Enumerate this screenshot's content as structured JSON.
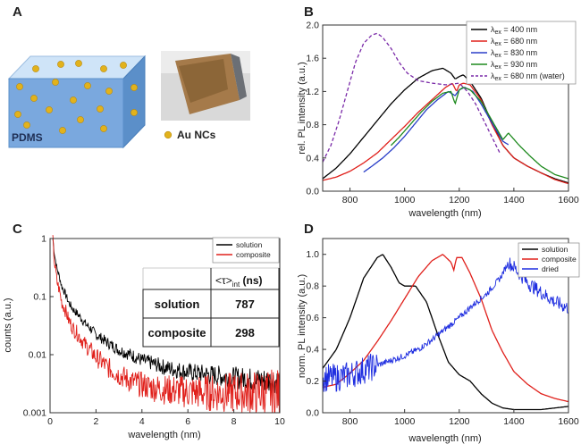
{
  "panel_letters": [
    "A",
    "B",
    "C",
    "D"
  ],
  "panel_a": {
    "block_label": "PDMS",
    "legend_label": "Au NCs",
    "colors": {
      "block_front": "#7aa8de",
      "block_top": "#cfe4f8",
      "block_side": "#5b8fc9",
      "dot": "#e2b21c"
    }
  },
  "chart_data": [
    {
      "type": "line",
      "panel": "B",
      "xlabel": "wavelength (nm)",
      "ylabel": "rel. PL intensity (a.u.)",
      "xlim": [
        700,
        1600
      ],
      "ylim": [
        0,
        2.0
      ],
      "xticks": [
        "800",
        "1000",
        "1200",
        "1400",
        "1600"
      ],
      "yticks": [
        "0.0",
        "0.4",
        "0.8",
        "1.2",
        "1.6",
        "2.0"
      ],
      "legend_position": "top-right",
      "series": [
        {
          "legend_main": "λ",
          "legend_sub": "ex",
          "legend_rest": " = 400 nm",
          "color": "#000000",
          "dash": false,
          "x": [
            700,
            750,
            800,
            850,
            900,
            950,
            1000,
            1050,
            1100,
            1140,
            1170,
            1185,
            1200,
            1215,
            1240,
            1280,
            1320,
            1360,
            1400,
            1450,
            1500,
            1550,
            1600
          ],
          "y": [
            0.15,
            0.28,
            0.45,
            0.65,
            0.85,
            1.05,
            1.22,
            1.36,
            1.45,
            1.48,
            1.42,
            1.35,
            1.38,
            1.4,
            1.32,
            1.12,
            0.82,
            0.55,
            0.4,
            0.3,
            0.22,
            0.15,
            0.1
          ]
        },
        {
          "legend_main": "λ",
          "legend_sub": "ex",
          "legend_rest": " = 680 nm",
          "color": "#e0201b",
          "dash": false,
          "x": [
            700,
            750,
            800,
            850,
            900,
            950,
            1000,
            1050,
            1100,
            1150,
            1175,
            1190,
            1200,
            1215,
            1240,
            1280,
            1320,
            1360,
            1400,
            1450,
            1500,
            1550,
            1600
          ],
          "y": [
            0.13,
            0.17,
            0.24,
            0.34,
            0.46,
            0.62,
            0.78,
            0.95,
            1.1,
            1.25,
            1.3,
            1.2,
            1.28,
            1.3,
            1.28,
            1.1,
            0.8,
            0.55,
            0.4,
            0.3,
            0.22,
            0.14,
            0.09
          ]
        },
        {
          "legend_main": "λ",
          "legend_sub": "ex",
          "legend_rest": " = 830 nm",
          "color": "#2b3fc8",
          "dash": false,
          "x": [
            850,
            880,
            920,
            960,
            1000,
            1040,
            1080,
            1120,
            1160,
            1185,
            1200,
            1220,
            1250,
            1280,
            1320,
            1360,
            1380
          ],
          "y": [
            0.23,
            0.3,
            0.4,
            0.52,
            0.66,
            0.82,
            0.98,
            1.1,
            1.2,
            1.15,
            1.22,
            1.25,
            1.2,
            1.05,
            0.82,
            0.6,
            0.56
          ]
        },
        {
          "legend_main": "λ",
          "legend_sub": "ex",
          "legend_rest": " = 930 nm",
          "color": "#1e8a1e",
          "dash": false,
          "x": [
            950,
            980,
            1020,
            1060,
            1100,
            1140,
            1170,
            1185,
            1200,
            1215,
            1240,
            1280,
            1320,
            1360,
            1380,
            1420,
            1460,
            1500,
            1550,
            1600
          ],
          "y": [
            0.55,
            0.65,
            0.8,
            0.95,
            1.08,
            1.18,
            1.2,
            1.05,
            1.22,
            1.25,
            1.22,
            1.08,
            0.85,
            0.62,
            0.7,
            0.55,
            0.42,
            0.3,
            0.2,
            0.15
          ]
        },
        {
          "legend_main": "λ",
          "legend_sub": "ex",
          "legend_rest": " = 680 nm (water)",
          "color": "#7a2aa8",
          "dash": true,
          "x": [
            700,
            730,
            760,
            790,
            820,
            850,
            880,
            900,
            920,
            950,
            980,
            1010,
            1050,
            1100,
            1150,
            1200,
            1230,
            1260,
            1290,
            1320,
            1350
          ],
          "y": [
            0.35,
            0.55,
            0.85,
            1.2,
            1.55,
            1.78,
            1.88,
            1.9,
            1.85,
            1.72,
            1.55,
            1.42,
            1.33,
            1.3,
            1.28,
            1.3,
            1.2,
            1.05,
            0.85,
            0.65,
            0.45
          ]
        }
      ]
    },
    {
      "type": "line",
      "panel": "C",
      "xlabel": "wavelength (nm)",
      "ylabel": "counts (a.u.)",
      "xlim": [
        0,
        10
      ],
      "ylim": [
        0.001,
        1
      ],
      "yscale": "log",
      "xticks": [
        "0",
        "2",
        "4",
        "6",
        "8",
        "10"
      ],
      "yticks": [
        "0.001",
        "0.01",
        "0.1",
        "1"
      ],
      "legend_position": "top-right",
      "series": [
        {
          "name": "solution",
          "color": "#000000",
          "noise": true,
          "x": [
            0.12,
            0.15,
            0.2,
            0.3,
            0.5,
            0.8,
            1.0,
            1.5,
            2.0,
            2.5,
            3.0,
            4.0,
            5.0,
            6.0,
            7.0,
            8.0,
            9.0,
            10.0
          ],
          "y": [
            1.0,
            0.75,
            0.5,
            0.3,
            0.15,
            0.08,
            0.06,
            0.035,
            0.022,
            0.016,
            0.012,
            0.008,
            0.006,
            0.005,
            0.0045,
            0.004,
            0.0037,
            0.0035
          ]
        },
        {
          "name": "composite",
          "color": "#e0201b",
          "noise": true,
          "x": [
            0.12,
            0.15,
            0.2,
            0.3,
            0.5,
            0.8,
            1.0,
            1.5,
            2.0,
            2.5,
            3.0,
            3.5,
            4.0,
            4.5,
            5.0,
            5.5,
            6.0,
            7.0,
            8.0,
            9.0,
            10.0
          ],
          "y": [
            1.0,
            0.6,
            0.35,
            0.18,
            0.08,
            0.04,
            0.028,
            0.015,
            0.009,
            0.006,
            0.0045,
            0.0035,
            0.003,
            0.0027,
            0.0025,
            0.0024,
            0.0023,
            0.0022,
            0.0022,
            0.0022,
            0.0022
          ]
        }
      ],
      "table": {
        "header": [
          "",
          "<τ>int (ns)"
        ],
        "header_main": "<τ>",
        "header_sub": "int",
        "header_unit": " (ns)",
        "rows": [
          {
            "label": "solution",
            "value": "787"
          },
          {
            "label": "composite",
            "value": "298"
          }
        ]
      }
    },
    {
      "type": "line",
      "panel": "D",
      "xlabel": "wavelength (nm)",
      "ylabel": "norm. PL intensity (a.u.)",
      "xlim": [
        700,
        1600
      ],
      "ylim": [
        0,
        1.1
      ],
      "xticks": [
        "800",
        "1000",
        "1200",
        "1400",
        "1600"
      ],
      "yticks": [
        "0.0",
        "0.2",
        "0.4",
        "0.6",
        "0.8",
        "1.0"
      ],
      "legend_position": "top-right",
      "series": [
        {
          "name": "solution",
          "color": "#000000",
          "noise": false,
          "x": [
            700,
            750,
            800,
            850,
            900,
            920,
            950,
            980,
            1000,
            1040,
            1080,
            1120,
            1160,
            1200,
            1240,
            1280,
            1320,
            1360,
            1400,
            1450,
            1500,
            1550,
            1600
          ],
          "y": [
            0.28,
            0.4,
            0.6,
            0.85,
            0.98,
            1.0,
            0.92,
            0.82,
            0.8,
            0.8,
            0.7,
            0.5,
            0.32,
            0.24,
            0.2,
            0.12,
            0.06,
            0.03,
            0.02,
            0.02,
            0.02,
            0.03,
            0.04
          ]
        },
        {
          "name": "composite",
          "color": "#e0201b",
          "noise": false,
          "x": [
            700,
            750,
            800,
            850,
            900,
            950,
            1000,
            1050,
            1100,
            1140,
            1170,
            1180,
            1190,
            1210,
            1240,
            1280,
            1320,
            1360,
            1400,
            1450,
            1500,
            1550,
            1600
          ],
          "y": [
            0.16,
            0.18,
            0.25,
            0.33,
            0.45,
            0.58,
            0.72,
            0.86,
            0.96,
            1.0,
            0.95,
            0.9,
            0.98,
            0.98,
            0.88,
            0.72,
            0.52,
            0.38,
            0.26,
            0.18,
            0.12,
            0.09,
            0.07
          ]
        },
        {
          "name": "dried",
          "color": "#1f2ee0",
          "noise": true,
          "x": [
            700,
            750,
            800,
            850,
            900,
            950,
            1000,
            1050,
            1100,
            1150,
            1200,
            1250,
            1300,
            1350,
            1380,
            1400,
            1420,
            1450,
            1500,
            1550,
            1600
          ],
          "y": [
            0.22,
            0.22,
            0.24,
            0.27,
            0.3,
            0.33,
            0.36,
            0.4,
            0.46,
            0.53,
            0.6,
            0.68,
            0.75,
            0.85,
            0.95,
            0.92,
            0.88,
            0.82,
            0.76,
            0.7,
            0.66
          ]
        }
      ]
    }
  ]
}
